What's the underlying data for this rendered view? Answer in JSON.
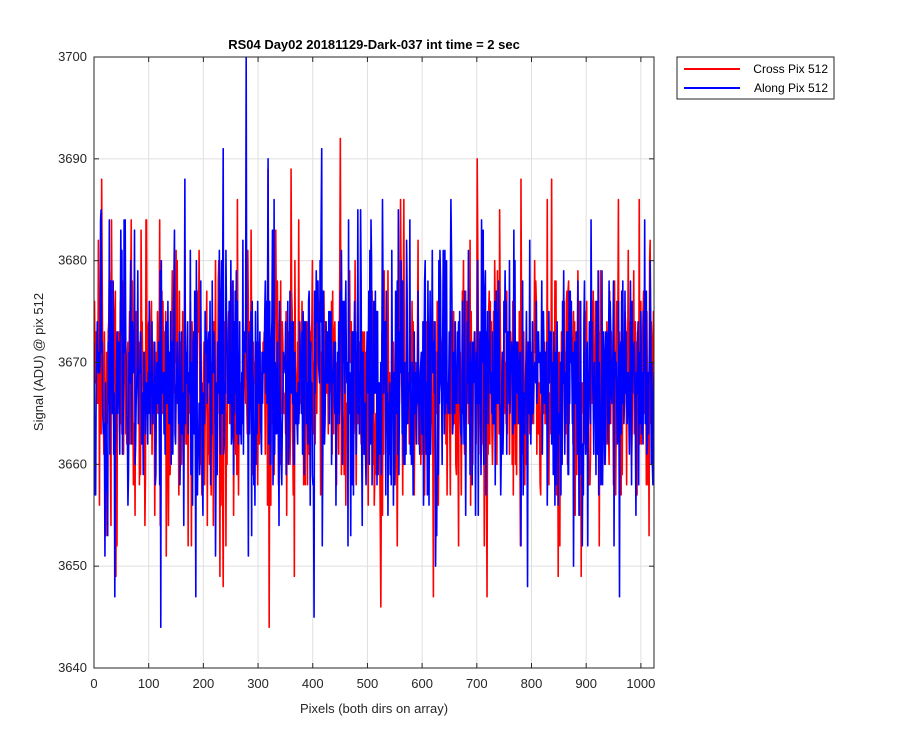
{
  "chart_data": {
    "type": "line",
    "title": "RS04 Day02 20181129-Dark-037 int time = 2 sec",
    "xlabel": "Pixels (both dirs on array)",
    "ylabel": "Signal (ADU) @ pix 512",
    "xlim": [
      0,
      1024
    ],
    "ylim": [
      3640,
      3700
    ],
    "xticks": [
      0,
      100,
      200,
      300,
      400,
      500,
      600,
      700,
      800,
      900,
      1000
    ],
    "yticks": [
      3640,
      3650,
      3660,
      3670,
      3680,
      3690,
      3700
    ],
    "grid": true,
    "legend_position": "outside-top-right",
    "series_generation": {
      "count": 1024,
      "center": 3668,
      "sigma": 6.2
    },
    "series": [
      {
        "name": "Cross Pix 512",
        "color": "#ff0000",
        "seed": 137,
        "anchors": [
          [
            0,
            3664
          ],
          [
            3,
            3668
          ],
          [
            8,
            3682
          ],
          [
            10,
            3656
          ],
          [
            14,
            3688
          ],
          [
            22,
            3653
          ],
          [
            32,
            3684
          ],
          [
            40,
            3649
          ],
          [
            68,
            3684
          ],
          [
            120,
            3684
          ],
          [
            132,
            3651
          ],
          [
            136,
            3654
          ],
          [
            172,
            3652
          ],
          [
            228,
            3680
          ],
          [
            230,
            3649
          ],
          [
            236,
            3648
          ],
          [
            262,
            3686
          ],
          [
            318,
            3689
          ],
          [
            320,
            3644
          ],
          [
            328,
            3680
          ],
          [
            360,
            3689
          ],
          [
            366,
            3649
          ],
          [
            450,
            3692
          ],
          [
            504,
            3677
          ],
          [
            524,
            3646
          ],
          [
            560,
            3686
          ],
          [
            620,
            3647
          ],
          [
            700,
            3690
          ],
          [
            718,
            3647
          ],
          [
            780,
            3688
          ],
          [
            836,
            3688
          ],
          [
            848,
            3649
          ],
          [
            890,
            3649
          ],
          [
            1014,
            3653
          ],
          [
            1016,
            3682
          ],
          [
            1020,
            3664
          ]
        ]
      },
      {
        "name": "Along Pix 512",
        "color": "#0000ff",
        "seed": 271,
        "anchors": [
          [
            0,
            3672
          ],
          [
            6,
            3674
          ],
          [
            12,
            3684
          ],
          [
            20,
            3651
          ],
          [
            28,
            3684
          ],
          [
            38,
            3647
          ],
          [
            74,
            3683
          ],
          [
            122,
            3644
          ],
          [
            166,
            3688
          ],
          [
            180,
            3656
          ],
          [
            186,
            3647
          ],
          [
            222,
            3651
          ],
          [
            236,
            3691
          ],
          [
            258,
            3677
          ],
          [
            278,
            3700
          ],
          [
            282,
            3651
          ],
          [
            318,
            3690
          ],
          [
            322,
            3660
          ],
          [
            402,
            3645
          ],
          [
            416,
            3691
          ],
          [
            506,
            3684
          ],
          [
            556,
            3685
          ],
          [
            624,
            3650
          ],
          [
            652,
            3686
          ],
          [
            792,
            3648
          ],
          [
            876,
            3650
          ],
          [
            908,
            3684
          ],
          [
            960,
            3647
          ],
          [
            1006,
            3684
          ],
          [
            1020,
            3660
          ],
          [
            1024,
            3669
          ]
        ]
      }
    ]
  }
}
